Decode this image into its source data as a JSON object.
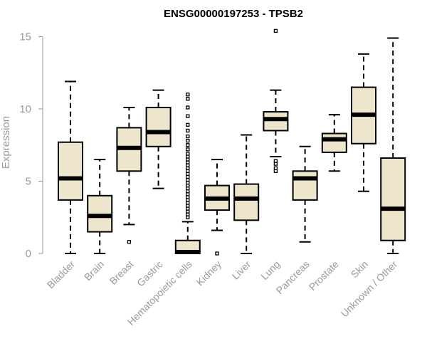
{
  "chart_data": {
    "type": "boxplot",
    "title": "ENSG00000197253 - TPSB2",
    "xlabel": "",
    "ylabel": "Expression",
    "ylim": [
      0,
      15.4
    ],
    "yticks": [
      0,
      5,
      10,
      15
    ],
    "grid": false,
    "box_fill": "#ede6cc",
    "box_stroke": "#000000",
    "categories": [
      "Bladder",
      "Brain",
      "Breast",
      "Gastric",
      "Hematopoietic cells",
      "Kidney",
      "Liver",
      "Lung",
      "Pancreas",
      "Prostate",
      "Skin",
      "Unknown / Other"
    ],
    "boxes": [
      {
        "whisker_low": 0.0,
        "q1": 3.7,
        "median": 5.2,
        "q3": 7.7,
        "whisker_high": 11.9,
        "outliers": []
      },
      {
        "whisker_low": 0.0,
        "q1": 1.5,
        "median": 2.6,
        "q3": 4.0,
        "whisker_high": 6.5,
        "outliers": []
      },
      {
        "whisker_low": 2.0,
        "q1": 5.7,
        "median": 7.3,
        "q3": 8.7,
        "whisker_high": 10.1,
        "outliers": [
          0.8
        ]
      },
      {
        "whisker_low": 4.5,
        "q1": 7.4,
        "median": 8.4,
        "q3": 10.1,
        "whisker_high": 11.3,
        "outliers": []
      },
      {
        "whisker_low": 0.0,
        "q1": 0.0,
        "median": 0.1,
        "q3": 0.9,
        "whisker_high": 2.2,
        "outliers": [
          2.5,
          2.7,
          2.9,
          3.1,
          3.3,
          3.5,
          3.7,
          3.9,
          4.1,
          4.3,
          4.5,
          4.7,
          4.9,
          5.1,
          5.3,
          5.5,
          5.7,
          5.9,
          6.1,
          6.3,
          6.5,
          6.7,
          6.9,
          7.2,
          7.5,
          7.8,
          8.1,
          8.5,
          8.9,
          9.5,
          10.1,
          10.7,
          11.0
        ]
      },
      {
        "whisker_low": 1.6,
        "q1": 3.0,
        "median": 3.8,
        "q3": 4.7,
        "whisker_high": 6.5,
        "outliers": [
          0.0
        ]
      },
      {
        "whisker_low": 0.0,
        "q1": 2.3,
        "median": 3.8,
        "q3": 4.8,
        "whisker_high": 8.2,
        "outliers": []
      },
      {
        "whisker_low": 6.7,
        "q1": 8.5,
        "median": 9.3,
        "q3": 9.8,
        "whisker_high": 11.3,
        "outliers": [
          5.7,
          5.9,
          6.2,
          6.4,
          15.4
        ]
      },
      {
        "whisker_low": 0.8,
        "q1": 3.7,
        "median": 5.2,
        "q3": 5.7,
        "whisker_high": 7.4,
        "outliers": []
      },
      {
        "whisker_low": 5.7,
        "q1": 7.0,
        "median": 7.9,
        "q3": 8.3,
        "whisker_high": 9.6,
        "outliers": []
      },
      {
        "whisker_low": 4.3,
        "q1": 7.6,
        "median": 9.6,
        "q3": 11.5,
        "whisker_high": 13.8,
        "outliers": []
      },
      {
        "whisker_low": 0.0,
        "q1": 0.9,
        "median": 3.1,
        "q3": 6.6,
        "whisker_high": 14.9,
        "outliers": []
      }
    ]
  }
}
